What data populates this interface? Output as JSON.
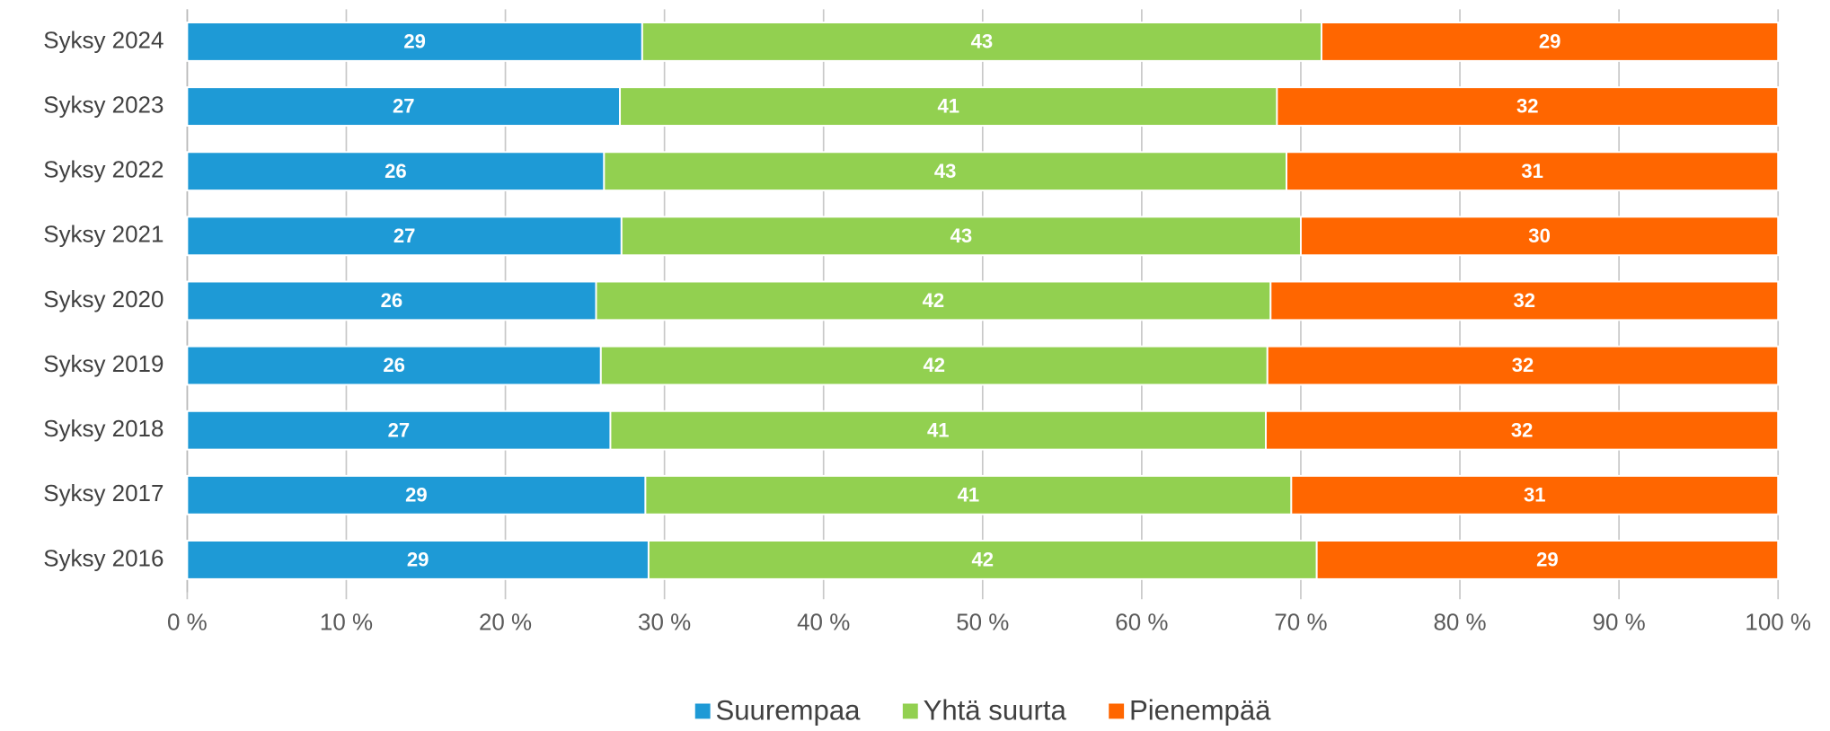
{
  "chart_data": {
    "type": "stacked_barh",
    "categories": [
      "Syksy 2024",
      "Syksy 2023",
      "Syksy 2022",
      "Syksy 2021",
      "Syksy 2020",
      "Syksy 2019",
      "Syksy 2018",
      "Syksy 2017",
      "Syksy 2016"
    ],
    "series": [
      {
        "name": "Suurempaa",
        "color": "#1e9ad6",
        "values": [
          28.6,
          27.2,
          26.2,
          27.3,
          25.7,
          26.0,
          26.6,
          28.8,
          29.0
        ],
        "value_labels": [
          "29",
          "27",
          "26",
          "27",
          "26",
          "26",
          "27",
          "29",
          "29"
        ]
      },
      {
        "name": "Yhtä suurta",
        "color": "#92d050",
        "values": [
          42.7,
          41.3,
          42.9,
          42.7,
          42.4,
          41.9,
          41.2,
          40.6,
          42.0
        ],
        "value_labels": [
          "43",
          "41",
          "43",
          "43",
          "42",
          "42",
          "41",
          "41",
          "42"
        ]
      },
      {
        "name": "Pienempää",
        "color": "#ff6600",
        "values": [
          28.7,
          31.5,
          30.9,
          30.0,
          31.9,
          32.1,
          32.2,
          30.6,
          29.0
        ],
        "value_labels": [
          "29",
          "32",
          "31",
          "30",
          "32",
          "32",
          "32",
          "31",
          "29"
        ]
      }
    ],
    "xlim": [
      0,
      100
    ],
    "xticks": [
      {
        "value": 0,
        "label": "0 %"
      },
      {
        "value": 10,
        "label": "10 %"
      },
      {
        "value": 20,
        "label": "20 %"
      },
      {
        "value": 30,
        "label": "30 %"
      },
      {
        "value": 40,
        "label": "40 %"
      },
      {
        "value": 50,
        "label": "50 %"
      },
      {
        "value": 60,
        "label": "60 %"
      },
      {
        "value": 70,
        "label": "70 %"
      },
      {
        "value": 80,
        "label": "80 %"
      },
      {
        "value": 90,
        "label": "90 %"
      },
      {
        "value": 100,
        "label": "100 %"
      }
    ],
    "grid": true,
    "legend": "bottom"
  }
}
